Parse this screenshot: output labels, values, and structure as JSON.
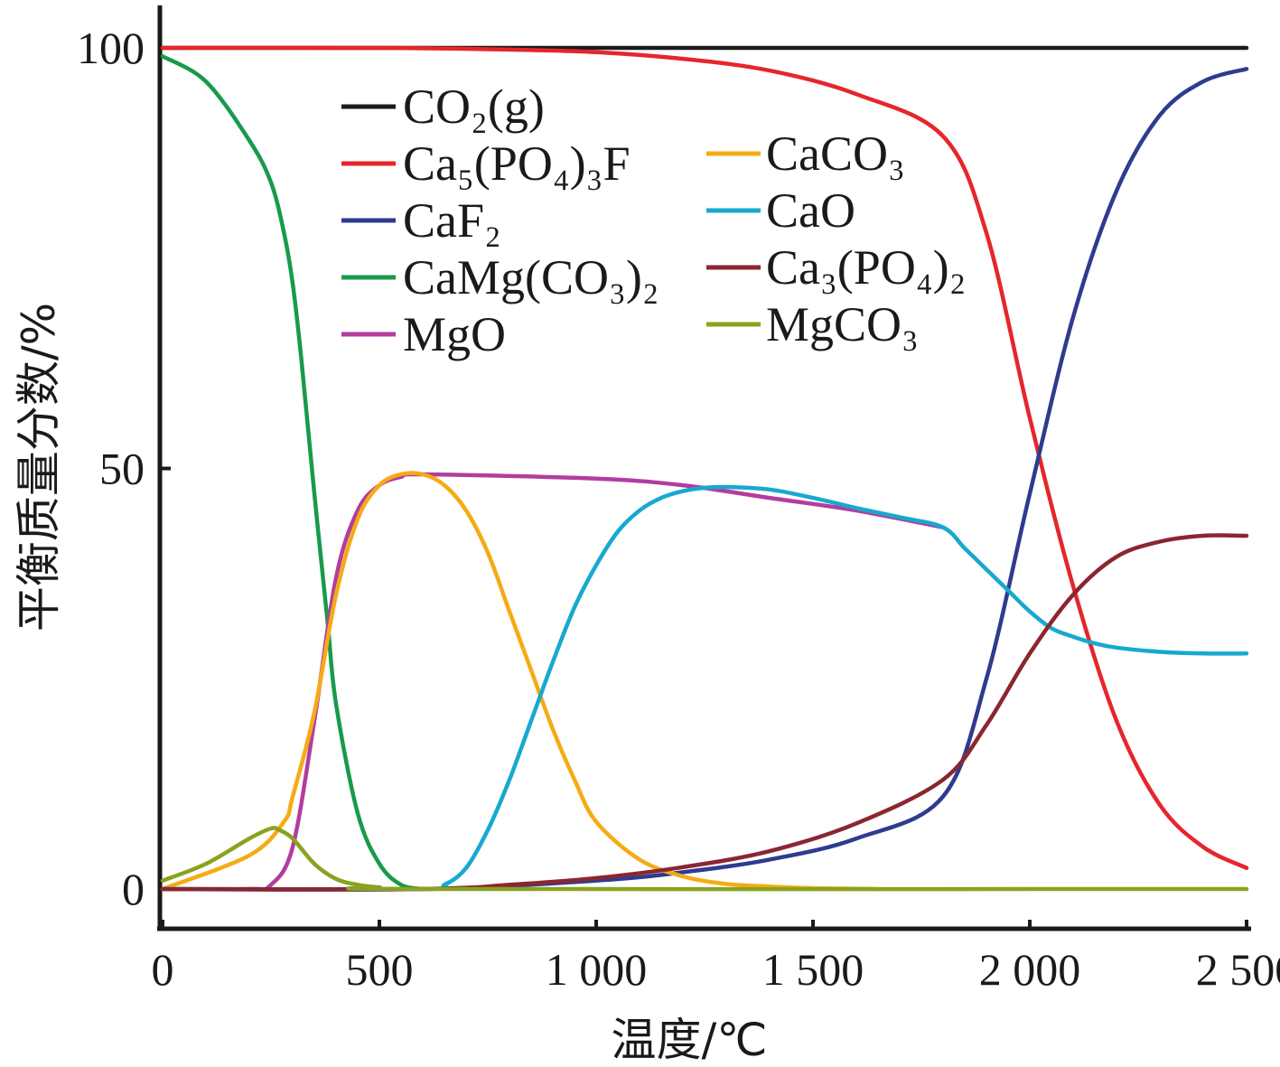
{
  "chart_data": {
    "type": "line",
    "xlabel": "温度/℃",
    "ylabel": "平衡质量分数/%",
    "xlim": [
      0,
      2500
    ],
    "ylim": [
      -5,
      105
    ],
    "xticks": [
      0,
      500,
      1000,
      1500,
      2000,
      2500
    ],
    "xtick_labels": [
      "0",
      "500",
      "1 000",
      "1 500",
      "2 000",
      "2 500"
    ],
    "yticks": [
      0,
      50,
      100
    ],
    "ytick_labels": [
      "0",
      "50",
      "100"
    ],
    "grid": false,
    "legend_position": "upper-left, two columns",
    "series": [
      {
        "name": "CO₂(g)",
        "color": "#1a1a1a",
        "legend_col": 0,
        "x": [
          0,
          2500
        ],
        "y": [
          100,
          100
        ]
      },
      {
        "name": "Ca₅(PO₄)₃F",
        "color": "#e5262b",
        "legend_col": 0,
        "x": [
          0,
          500,
          800,
          1000,
          1200,
          1400,
          1600,
          1800,
          1900,
          2000,
          2100,
          2200,
          2300,
          2400,
          2500
        ],
        "y": [
          100,
          100,
          99.8,
          99.5,
          98.7,
          97.3,
          94.5,
          89.5,
          78,
          56,
          36,
          20,
          10,
          5,
          2.5
        ]
      },
      {
        "name": "CaF₂",
        "color": "#2f3b8f",
        "legend_col": 0,
        "x": [
          0,
          600,
          1000,
          1200,
          1400,
          1600,
          1800,
          1900,
          2000,
          2100,
          2200,
          2300,
          2400,
          2500
        ],
        "y": [
          0,
          0,
          1,
          2,
          3.5,
          6,
          11,
          25,
          47,
          68,
          83,
          92,
          96,
          97.5
        ]
      },
      {
        "name": "CaMg(CO₃)₂",
        "color": "#189a4b",
        "legend_col": 0,
        "x": [
          0,
          100,
          200,
          250,
          280,
          300,
          320,
          350,
          380,
          400,
          450,
          500,
          550,
          600
        ],
        "y": [
          99,
          96,
          89,
          84,
          78,
          72,
          63,
          47,
          32,
          22,
          9,
          3,
          0.5,
          0
        ]
      },
      {
        "name": "MgO",
        "color": "#b23d9e",
        "legend_col": 0,
        "x": [
          0,
          200,
          250,
          300,
          350,
          400,
          450,
          500,
          550,
          600,
          1000,
          1200,
          1400,
          1600,
          1800
        ],
        "y": [
          0,
          0,
          0.5,
          5,
          20,
          37,
          45,
          48,
          49,
          49.3,
          48.8,
          48,
          46.5,
          45,
          43
        ]
      },
      {
        "name": "CaCO₃",
        "color": "#f5ab16",
        "legend_col": 1,
        "x": [
          0,
          200,
          280,
          300,
          350,
          400,
          450,
          500,
          550,
          600,
          650,
          700,
          750,
          800,
          850,
          900,
          950,
          1000,
          1100,
          1200,
          1300,
          1400,
          1500,
          1650
        ],
        "y": [
          0,
          4,
          8,
          11,
          21,
          35,
          44,
          48,
          49.3,
          49.3,
          48,
          45,
          40,
          33,
          26,
          19,
          13,
          8,
          3.5,
          1.5,
          0.6,
          0.3,
          0.1,
          0
        ]
      },
      {
        "name": "CaO",
        "color": "#17a9d0",
        "legend_col": 1,
        "x": [
          0,
          600,
          650,
          700,
          750,
          800,
          850,
          900,
          950,
          1000,
          1050,
          1100,
          1150,
          1200,
          1250,
          1300,
          1400,
          1500,
          1600,
          1700,
          1800,
          1850,
          1900,
          1950,
          2000,
          2050,
          2100,
          2150,
          2200,
          2300,
          2400,
          2500
        ],
        "y": [
          0,
          0,
          0.5,
          2.5,
          7,
          13,
          20,
          27,
          33.5,
          38.5,
          42.5,
          45,
          46.5,
          47.3,
          47.7,
          47.8,
          47.5,
          46.5,
          45.3,
          44.2,
          43,
          40.5,
          38,
          35.5,
          33,
          31,
          30,
          29.2,
          28.7,
          28.2,
          28,
          28
        ]
      },
      {
        "name": "Ca₃(PO₄)₂",
        "color": "#8b2630",
        "legend_col": 1,
        "x": [
          0,
          600,
          800,
          1000,
          1200,
          1400,
          1600,
          1800,
          1900,
          2000,
          2100,
          2200,
          2300,
          2400,
          2500
        ],
        "y": [
          0,
          0,
          0.5,
          1.3,
          2.6,
          4.5,
          7.8,
          13,
          19.5,
          28,
          35,
          39.5,
          41.3,
          42,
          42
        ]
      },
      {
        "name": "MgCO₃",
        "color": "#8aa31f",
        "legend_col": 1,
        "x": [
          0,
          100,
          200,
          250,
          270,
          300,
          350,
          400,
          450,
          500,
          600,
          2500
        ],
        "y": [
          1,
          3,
          6,
          7.2,
          7,
          6,
          3,
          1.2,
          0.5,
          0.2,
          0,
          0
        ]
      }
    ]
  }
}
